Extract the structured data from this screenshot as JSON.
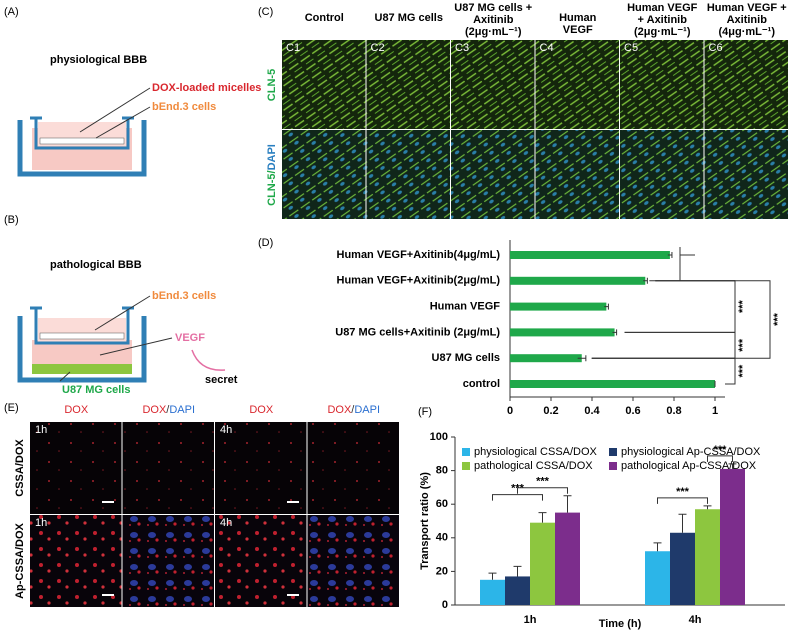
{
  "panel_labels": [
    "(A)",
    "(B)",
    "(C)",
    "(D)",
    "(E)",
    "(F)"
  ],
  "panel_a": {
    "title": "physiological  BBB",
    "labels": [
      "DOX-loaded micelles",
      "bEnd.3 cells"
    ]
  },
  "panel_b": {
    "title": "pathological  BBB",
    "labels": [
      "bEnd.3 cells",
      "VEGF",
      "secret",
      "U87 MG cells"
    ]
  },
  "panel_c": {
    "columns": [
      [
        "Control"
      ],
      [
        "U87 MG cells"
      ],
      [
        "U87 MG cells +",
        "Axitinib",
        "(2μg·mL⁻¹)"
      ],
      [
        "Human",
        "VEGF"
      ],
      [
        "Human VEGF",
        "+ Axitinib",
        "(2μg·mL⁻¹)"
      ],
      [
        "Human VEGF +",
        "Axitinib",
        "(4μg·mL⁻¹)"
      ]
    ],
    "cells": [
      "C1",
      "C2",
      "C3",
      "C4",
      "C5",
      "C6"
    ],
    "rows": [
      [
        "CLN-5"
      ],
      [
        "CLN-5/",
        "DAPI"
      ]
    ]
  },
  "panel_e": {
    "columns": [
      [
        "DOX"
      ],
      [
        "DOX",
        "/",
        "DAPI"
      ],
      [
        "DOX"
      ],
      [
        "DOX",
        "/",
        "DAPI"
      ]
    ],
    "rows": [
      "CSSA/DOX",
      "Ap-CSSA/DOX"
    ],
    "times": [
      "1h",
      "4h"
    ]
  },
  "chart_data": [
    {
      "type": "hbar",
      "categories": [
        "Human VEGF+Axitinib(4μg/mL)",
        "Human VEGF+Axitinib(2μg/mL)",
        "Human VEGF",
        "U87 MG cells+Axitinib (2μg/mL)",
        "U87 MG cells",
        "control"
      ],
      "values": [
        0.78,
        0.66,
        0.47,
        0.51,
        0.35,
        1
      ],
      "errors": [
        0.01,
        0.01,
        0.01,
        0.01,
        0.02,
        0
      ],
      "color": "#1fa84a",
      "xlim": [
        0,
        1
      ],
      "xticks": [
        0,
        0.2,
        0.4,
        0.6,
        0.8,
        1
      ],
      "significance": [
        "***",
        "***",
        "***",
        "***"
      ]
    },
    {
      "type": "bar",
      "categories": [
        "1h",
        "4h"
      ],
      "xlabel": "Time (h)",
      "ylabel": "Transport ratio (%)",
      "ylim": [
        0,
        100
      ],
      "yticks": [
        0,
        20,
        40,
        60,
        80,
        100
      ],
      "series": [
        {
          "name": "physiological CSSA/DOX",
          "color": "#2cb5e8",
          "values": [
            15,
            32
          ],
          "errors": [
            4,
            5
          ]
        },
        {
          "name": "physiological Ap-CSSA/DOX",
          "color": "#1f3a6b",
          "values": [
            17,
            43
          ],
          "errors": [
            6,
            11
          ]
        },
        {
          "name": "pathological CSSA/DOX",
          "color": "#8dc63f",
          "values": [
            49,
            57
          ],
          "errors": [
            6,
            2
          ]
        },
        {
          "name": "pathological Ap-CSSA/DOX",
          "color": "#7c2d8c",
          "values": [
            55,
            81
          ],
          "errors": [
            10,
            3
          ]
        }
      ],
      "significance": [
        "***",
        "***",
        "***",
        "***"
      ]
    }
  ]
}
